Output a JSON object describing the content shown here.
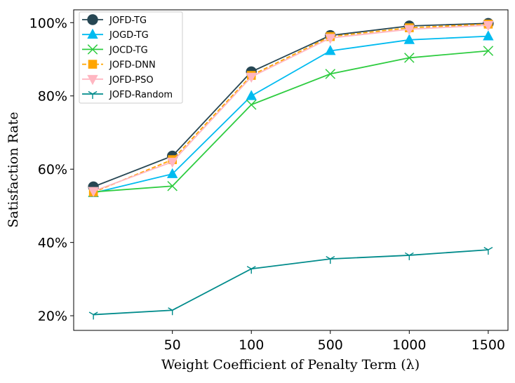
{
  "chart_data": {
    "type": "line",
    "title": "",
    "xlabel": "Weight Coefficient of Penalty Term (λ)",
    "ylabel": "Satisfaction Rate",
    "x_tick_labels": [
      "",
      "50",
      "100",
      "500",
      "1000",
      "1500"
    ],
    "y_tick_labels": [
      "20%",
      "40%",
      "60%",
      "80%",
      "100%"
    ],
    "y_ticks": [
      20,
      40,
      60,
      80,
      100
    ],
    "ylim": [
      16,
      103.5
    ],
    "xlim": [
      -0.25,
      5.25
    ],
    "legend_position": "top-left",
    "series": [
      {
        "name": "JOFD-TG",
        "color": "#264653",
        "marker": "circle",
        "dashed": false,
        "values": [
          55.2,
          63.6,
          86.6,
          96.5,
          99.1,
          99.8
        ]
      },
      {
        "name": "JOGD-TG",
        "color": "#00bbf0",
        "marker": "triangle-up",
        "dashed": false,
        "values": [
          53.5,
          58.7,
          80.0,
          92.3,
          95.3,
          96.3
        ]
      },
      {
        "name": "JOCD-TG",
        "color": "#2ecc40",
        "marker": "x",
        "dashed": false,
        "values": [
          53.8,
          55.4,
          77.6,
          86.0,
          90.4,
          92.3
        ]
      },
      {
        "name": "JOFD-DNN",
        "color": "#ffa500",
        "marker": "square",
        "dashed": true,
        "values": [
          53.7,
          62.6,
          85.6,
          96.2,
          98.6,
          99.6
        ]
      },
      {
        "name": "JOFD-PSO",
        "color": "#ffb6c1",
        "marker": "triangle-down",
        "dashed": false,
        "values": [
          54.0,
          62.0,
          85.2,
          95.8,
          98.2,
          99.3
        ]
      },
      {
        "name": "JOFD-Random",
        "color": "#008b8b",
        "marker": "tri-down",
        "dashed": false,
        "values": [
          20.3,
          21.5,
          32.8,
          35.5,
          36.5,
          38.0
        ]
      }
    ]
  }
}
